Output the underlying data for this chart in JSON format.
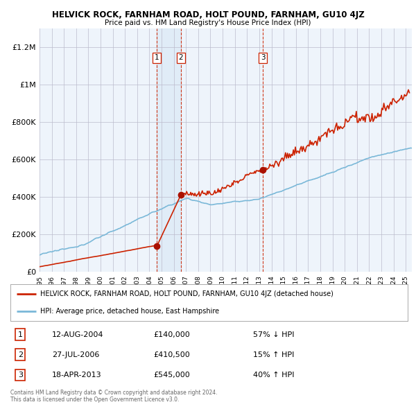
{
  "title": "HELVICK ROCK, FARNHAM ROAD, HOLT POUND, FARNHAM, GU10 4JZ",
  "subtitle": "Price paid vs. HM Land Registry's House Price Index (HPI)",
  "ylabel_ticks": [
    "£0",
    "£200K",
    "£400K",
    "£600K",
    "£800K",
    "£1M",
    "£1.2M"
  ],
  "ylim": [
    0,
    1300000
  ],
  "yticks": [
    0,
    200000,
    400000,
    600000,
    800000,
    1000000,
    1200000
  ],
  "hpi_color": "#7ab8d8",
  "price_color": "#cc2200",
  "sale_marker_color": "#aa1100",
  "dashed_line_color": "#cc2200",
  "shade_color": "#ddeeff",
  "legend_house": "HELVICK ROCK, FARNHAM ROAD, HOLT POUND, FARNHAM, GU10 4JZ (detached house)",
  "legend_hpi": "HPI: Average price, detached house, East Hampshire",
  "sales": [
    {
      "label": "1",
      "date": "12-AUG-2004",
      "price": 140000,
      "year": 2004.62,
      "pct": "57%",
      "dir": "↓"
    },
    {
      "label": "2",
      "date": "27-JUL-2006",
      "price": 410500,
      "year": 2006.57,
      "pct": "15%",
      "dir": "↑"
    },
    {
      "label": "3",
      "date": "18-APR-2013",
      "price": 545000,
      "year": 2013.3,
      "pct": "40%",
      "dir": "↑"
    }
  ],
  "table_rows": [
    [
      "1",
      "12-AUG-2004",
      "£140,000",
      "57% ↓ HPI"
    ],
    [
      "2",
      "27-JUL-2006",
      "£410,500",
      "15% ↑ HPI"
    ],
    [
      "3",
      "18-APR-2013",
      "£545,000",
      "40% ↑ HPI"
    ]
  ],
  "footer": "Contains HM Land Registry data © Crown copyright and database right 2024.\nThis data is licensed under the Open Government Licence v3.0.",
  "background_color": "#ffffff",
  "grid_color": "#cccccc",
  "xlim_start": 1995,
  "xlim_end": 2025.5
}
